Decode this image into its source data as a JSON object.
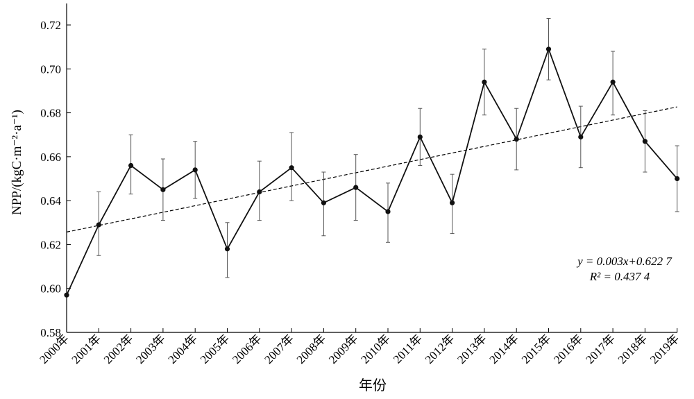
{
  "chart_data": {
    "type": "line",
    "x": [
      "2000年",
      "2001年",
      "2002年",
      "2003年",
      "2004年",
      "2005年",
      "2006年",
      "2007年",
      "2008年",
      "2009年",
      "2010年",
      "2011年",
      "2012年",
      "2013年",
      "2014年",
      "2015年",
      "2016年",
      "2017年",
      "2018年",
      "2019年"
    ],
    "series": [
      {
        "values": [
          0.597,
          0.629,
          0.656,
          0.645,
          0.654,
          0.618,
          0.644,
          0.655,
          0.639,
          0.646,
          0.635,
          0.669,
          0.639,
          0.694,
          0.668,
          0.709,
          0.669,
          0.694,
          0.667,
          0.65
        ],
        "error_low": [
          0.597,
          0.615,
          0.643,
          0.631,
          0.641,
          0.605,
          0.631,
          0.64,
          0.624,
          0.631,
          0.621,
          0.656,
          0.625,
          0.679,
          0.654,
          0.695,
          0.655,
          0.679,
          0.653,
          0.635
        ],
        "error_high": [
          0.597,
          0.644,
          0.67,
          0.659,
          0.667,
          0.63,
          0.658,
          0.671,
          0.653,
          0.661,
          0.648,
          0.682,
          0.652,
          0.709,
          0.682,
          0.723,
          0.683,
          0.708,
          0.681,
          0.665
        ],
        "color": "#111111"
      }
    ],
    "trendline": {
      "slope": 0.003,
      "intercept": 0.6227,
      "style": "dashed"
    },
    "equation": "y = 0.003x+0.622 7",
    "r2": "R² = 0.437 4",
    "ylabel": "NPP/(kgC·m⁻²·a⁻¹)",
    "xlabel": "年份",
    "ylim": [
      0.58,
      0.73
    ],
    "yticks": [
      0.58,
      0.6,
      0.62,
      0.64,
      0.66,
      0.68,
      0.7,
      0.72
    ],
    "ytick_labels": [
      "0.58",
      "0.60",
      "0.62",
      "0.64",
      "0.66",
      "0.68",
      "0.70",
      "0.72"
    ],
    "grid": false
  }
}
